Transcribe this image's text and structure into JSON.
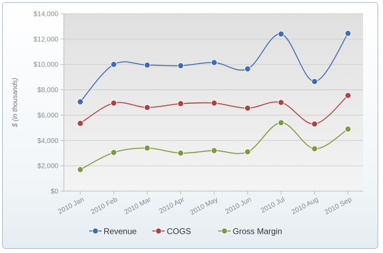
{
  "chart_data": {
    "type": "line",
    "title": "",
    "xlabel": "",
    "ylabel": "$ (in thousands)",
    "categories": [
      "2010 Jan",
      "2010 Feb",
      "2010 Mar",
      "2010 Apr",
      "2010 May",
      "2010 Jun",
      "2010 Jul",
      "2010 Aug",
      "2010 Sep"
    ],
    "ylim": [
      0,
      14000
    ],
    "yticks": [
      0,
      2000,
      4000,
      6000,
      8000,
      10000,
      12000,
      14000
    ],
    "ytick_labels": [
      "$0",
      "$2,000",
      "$4,000",
      "$6,000",
      "$8,000",
      "$10,000",
      "$12,000",
      "$14,000"
    ],
    "grid": true,
    "legend_position": "bottom",
    "series": [
      {
        "name": "Revenue",
        "color": "#3f6bb0",
        "values": [
          7050,
          10000,
          9950,
          9900,
          10150,
          9650,
          12400,
          8650,
          12450
        ]
      },
      {
        "name": "COGS",
        "color": "#b04040",
        "values": [
          5350,
          6950,
          6600,
          6900,
          6950,
          6550,
          7000,
          5300,
          7550
        ]
      },
      {
        "name": "Gross Margin",
        "color": "#7d9a3c",
        "values": [
          1700,
          3050,
          3400,
          3000,
          3200,
          3100,
          5400,
          3350,
          4900
        ]
      }
    ]
  }
}
